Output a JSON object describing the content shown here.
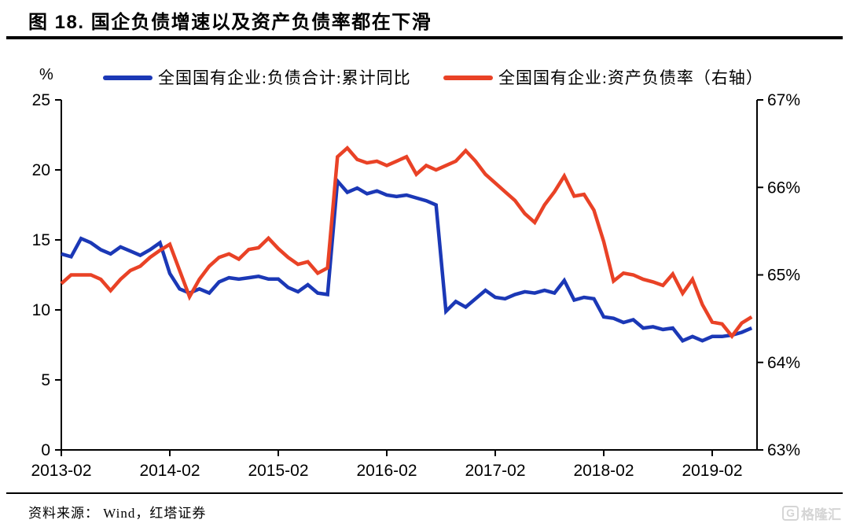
{
  "source_note": "资料来源： Wind，红塔证券",
  "logo": {
    "letter": "G",
    "text": "格隆汇"
  },
  "chart_data": {
    "type": "line",
    "title": "图 18. 国企负债增速以及资产负债率都在下滑",
    "legend_position": "top",
    "grid": false,
    "left_axis": {
      "unit": "%",
      "min": 0,
      "max": 25,
      "tick_values": [
        25,
        20,
        15,
        10,
        5,
        0
      ],
      "tick_labels": [
        "25",
        "20",
        "15",
        "10",
        "5",
        "0"
      ]
    },
    "right_axis": {
      "unit": "%",
      "min": 63,
      "max": 67,
      "tick_values": [
        67,
        66,
        65,
        64,
        63
      ],
      "tick_labels": [
        "67%",
        "66%",
        "65%",
        "64%",
        "63%"
      ]
    },
    "x_tick_labels": [
      "2013-02",
      "2014-02",
      "2015-02",
      "2016-02",
      "2017-02",
      "2018-02",
      "2019-02"
    ],
    "x_tick_indices": [
      0,
      11,
      22,
      33,
      44,
      55,
      66
    ],
    "x": [
      "2013-02",
      "2013-03",
      "2013-04",
      "2013-05",
      "2013-06",
      "2013-07",
      "2013-08",
      "2013-09",
      "2013-10",
      "2013-11",
      "2013-12",
      "2014-02",
      "2014-03",
      "2014-04",
      "2014-05",
      "2014-06",
      "2014-07",
      "2014-08",
      "2014-09",
      "2014-10",
      "2014-11",
      "2014-12",
      "2015-02",
      "2015-03",
      "2015-04",
      "2015-05",
      "2015-06",
      "2015-07",
      "2015-08",
      "2015-09",
      "2015-10",
      "2015-11",
      "2015-12",
      "2016-02",
      "2016-03",
      "2016-04",
      "2016-05",
      "2016-06",
      "2016-07",
      "2016-08",
      "2016-09",
      "2016-10",
      "2016-11",
      "2016-12",
      "2017-02",
      "2017-03",
      "2017-04",
      "2017-05",
      "2017-06",
      "2017-07",
      "2017-08",
      "2017-09",
      "2017-10",
      "2017-11",
      "2017-12",
      "2018-02",
      "2018-03",
      "2018-04",
      "2018-05",
      "2018-06",
      "2018-07",
      "2018-08",
      "2018-09",
      "2018-10",
      "2018-11",
      "2018-12",
      "2019-02",
      "2019-03",
      "2019-04",
      "2019-05",
      "2019-06"
    ],
    "series": [
      {
        "id": "liabilities-yoy",
        "name": "全国国有企业:负债合计:累计同比",
        "axis": "left",
        "color": "#1B38B6",
        "values": [
          14.0,
          13.8,
          15.1,
          14.8,
          14.3,
          14.0,
          14.5,
          14.2,
          13.9,
          14.3,
          14.8,
          12.6,
          11.5,
          11.2,
          11.5,
          11.2,
          12.0,
          12.3,
          12.2,
          12.3,
          12.4,
          12.2,
          12.2,
          11.6,
          11.3,
          11.8,
          11.2,
          11.1,
          19.2,
          18.4,
          18.7,
          18.3,
          18.5,
          18.2,
          18.1,
          18.2,
          18.0,
          17.8,
          17.5,
          9.9,
          10.6,
          10.2,
          10.8,
          11.4,
          10.9,
          10.8,
          11.1,
          11.3,
          11.2,
          11.4,
          11.2,
          12.1,
          10.7,
          10.9,
          10.8,
          9.5,
          9.4,
          9.1,
          9.3,
          8.7,
          8.8,
          8.6,
          8.7,
          7.8,
          8.1,
          7.8,
          8.1,
          8.1,
          8.2,
          8.4,
          8.7
        ]
      },
      {
        "id": "asset-liability-ratio",
        "name": "全国国有企业:资产负债率（右轴）",
        "axis": "right",
        "color": "#E94226",
        "values": [
          64.9,
          65.0,
          65.0,
          65.0,
          64.95,
          64.82,
          64.95,
          65.05,
          65.1,
          65.2,
          65.28,
          65.35,
          65.05,
          64.75,
          64.95,
          65.1,
          65.2,
          65.24,
          65.18,
          65.29,
          65.31,
          65.42,
          65.3,
          65.2,
          65.12,
          65.15,
          65.02,
          65.08,
          66.35,
          66.45,
          66.32,
          66.28,
          66.3,
          66.25,
          66.3,
          66.35,
          66.15,
          66.25,
          66.2,
          66.25,
          66.3,
          66.42,
          66.3,
          66.15,
          66.05,
          65.95,
          65.85,
          65.7,
          65.6,
          65.8,
          65.95,
          66.13,
          65.9,
          65.92,
          65.74,
          65.38,
          64.93,
          65.02,
          65.0,
          64.95,
          64.92,
          64.88,
          65.01,
          64.79,
          64.95,
          64.66,
          64.46,
          64.44,
          64.3,
          64.45,
          64.52
        ]
      }
    ]
  }
}
